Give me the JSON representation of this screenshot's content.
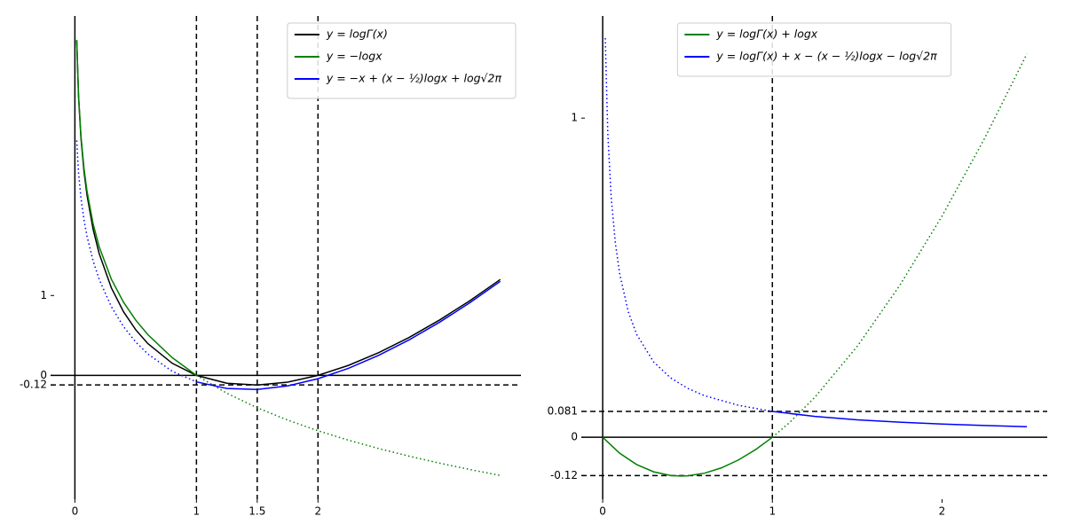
{
  "chart_data": [
    {
      "type": "line",
      "xlim": [
        -0.2,
        3.67
      ],
      "ylim": [
        -1.55,
        4.5
      ],
      "xticks": [
        0,
        1,
        1.5,
        2
      ],
      "yticks": [
        -0.12,
        0,
        1
      ],
      "legend": "upper right",
      "hlines": [
        {
          "y": 0,
          "style": "solid"
        },
        {
          "y": -0.12,
          "style": "dashed"
        }
      ],
      "vlines": [
        {
          "x": 0,
          "style": "solid"
        },
        {
          "x": 1,
          "style": "dashed"
        },
        {
          "x": 1.5,
          "style": "dashed"
        },
        {
          "x": 2,
          "style": "dashed"
        }
      ],
      "series": [
        {
          "name": "y = logΓ(x)",
          "color": "#000000",
          "pieces": [
            {
              "style": "solid",
              "x": [
                0.015,
                0.03,
                0.05,
                0.075,
                0.1,
                0.15,
                0.2,
                0.3,
                0.4,
                0.5,
                0.6,
                0.8,
                1,
                1.25,
                1.5,
                1.75,
                2,
                2.25,
                2.5,
                2.75,
                3,
                3.25,
                3.5
              ],
              "values": [
                4.1912,
                3.49,
                2.9689,
                2.5515,
                2.2527,
                1.8278,
                1.5241,
                1.0958,
                0.7967,
                0.5724,
                0.3982,
                0.1521,
                0,
                -0.0983,
                -0.1208,
                -0.0844,
                0,
                0.1249,
                0.2847,
                0.4753,
                0.6931,
                0.9358,
                1.201
              ]
            }
          ]
        },
        {
          "name": "y = −logx",
          "color": "#008000",
          "pieces": [
            {
              "style": "solid",
              "x": [
                0.015,
                0.03,
                0.05,
                0.075,
                0.1,
                0.15,
                0.2,
                0.3,
                0.4,
                0.5,
                0.6,
                0.8,
                1
              ],
              "values": [
                4.1997,
                3.5066,
                2.9957,
                2.5903,
                2.3026,
                1.8971,
                1.6094,
                1.204,
                0.9163,
                0.6931,
                0.5108,
                0.2231,
                0
              ]
            },
            {
              "style": "dotted",
              "x": [
                1,
                1.25,
                1.5,
                1.75,
                2,
                2.25,
                2.5,
                2.75,
                3,
                3.25,
                3.5
              ],
              "values": [
                0,
                -0.2231,
                -0.4055,
                -0.5596,
                -0.6931,
                -0.8109,
                -0.9163,
                -1.0116,
                -1.0986,
                -1.1787,
                -1.2528
              ]
            }
          ]
        },
        {
          "name": "y = −x + (x − ½)logx + log√2π",
          "color": "#0000ff",
          "pieces": [
            {
              "style": "dotted",
              "x": [
                0.015,
                0.03,
                0.05,
                0.075,
                0.1,
                0.15,
                0.2,
                0.3,
                0.4,
                0.5,
                0.6,
                0.8,
                1
              ],
              "values": [
                2.9408,
                2.537,
                2.217,
                1.9448,
                1.7399,
                1.4329,
                1.2017,
                0.8597,
                0.6105,
                0.4189,
                0.2678,
                0.052,
                -0.0811
              ]
            },
            {
              "style": "solid",
              "x": [
                1,
                1.25,
                1.5,
                1.75,
                2,
                2.25,
                2.5,
                2.75,
                3,
                3.25,
                3.5
              ],
              "values": [
                -0.0811,
                -0.1637,
                -0.1756,
                -0.1316,
                -0.0414,
                0.088,
                0.2515,
                0.445,
                0.6654,
                0.9103,
                1.1773
              ]
            }
          ]
        }
      ]
    },
    {
      "type": "line",
      "xlim": [
        -0.126,
        2.62
      ],
      "ylim": [
        -0.194,
        1.32
      ],
      "xticks": [
        0,
        1,
        2
      ],
      "yticks": [
        -0.12,
        0,
        0.081,
        1
      ],
      "legend": "upper center",
      "hlines": [
        {
          "y": 0,
          "style": "solid"
        },
        {
          "y": 0.081,
          "style": "dashed"
        },
        {
          "y": -0.12,
          "style": "dashed"
        }
      ],
      "vlines": [
        {
          "x": 0,
          "style": "solid"
        },
        {
          "x": 1,
          "style": "dashed"
        }
      ],
      "series": [
        {
          "name": "y = logΓ(x) + logx",
          "color": "#008000",
          "pieces": [
            {
              "style": "solid",
              "x": [
                0,
                0.1,
                0.2,
                0.3,
                0.4,
                0.4616,
                0.5,
                0.6,
                0.7,
                0.8,
                0.9,
                1
              ],
              "values": [
                0,
                -0.0499,
                -0.0854,
                -0.1082,
                -0.1196,
                -0.1215,
                -0.1208,
                -0.1126,
                -0.0958,
                -0.0711,
                -0.039,
                0
              ]
            },
            {
              "style": "dotted",
              "x": [
                1,
                1.1,
                1.25,
                1.5,
                1.75,
                2,
                2.25,
                2.5
              ],
              "values": [
                0,
                0.0454,
                0.1249,
                0.2847,
                0.4753,
                0.6931,
                0.9358,
                1.201
              ]
            }
          ]
        },
        {
          "name": "y = logΓ(x) + x − (x − ½)logx − log√2π",
          "color": "#0000ff",
          "pieces": [
            {
              "style": "dotted",
              "x": [
                0.015,
                0.03,
                0.05,
                0.075,
                0.1,
                0.15,
                0.2,
                0.3,
                0.4,
                0.5,
                0.6,
                0.8,
                1
              ],
              "values": [
                1.2504,
                0.953,
                0.7519,
                0.6067,
                0.5128,
                0.3949,
                0.3224,
                0.2361,
                0.1862,
                0.1535,
                0.1304,
                0.1001,
                0.0811
              ]
            },
            {
              "style": "solid",
              "x": [
                1,
                1.25,
                1.5,
                1.75,
                2,
                2.25,
                2.5
              ],
              "values": [
                0.0811,
                0.0654,
                0.0548,
                0.0472,
                0.0414,
                0.0369,
                0.0332
              ]
            }
          ]
        }
      ]
    }
  ]
}
